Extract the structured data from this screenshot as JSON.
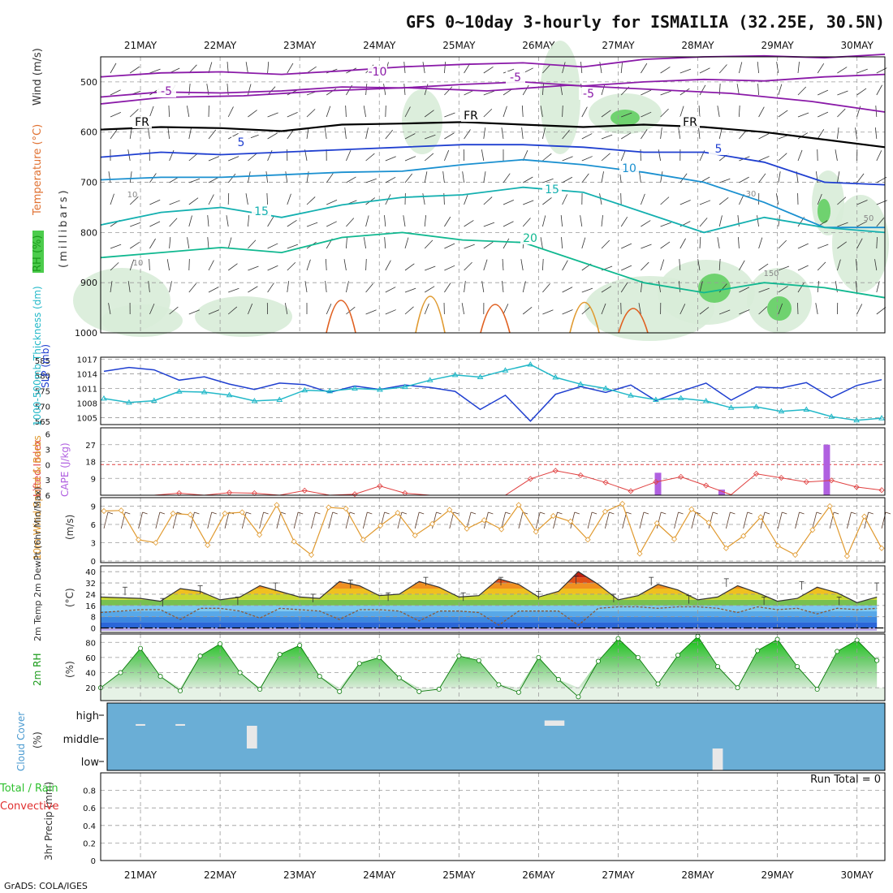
{
  "title": "GFS 0~10day 3-hourly for ISMAILIA (32.25E, 30.5N)",
  "credit": "GrADS: COLA/IGES",
  "dates": [
    "21MAY",
    "22MAY",
    "23MAY",
    "24MAY",
    "25MAY",
    "26MAY",
    "27MAY",
    "28MAY",
    "29MAY",
    "30MAY"
  ],
  "colors": {
    "grid": "#9a9a9a",
    "slp": "#1f3fd0",
    "thickness": "#22b8c8",
    "lifted": "#e04040",
    "cape": "#b060e0",
    "wind": "#e09a30",
    "dewpt": "#8a5a3a",
    "rh": "#2ec02e",
    "cloud": "#6aaed6",
    "precip_total": "#2ec02e",
    "precip_conv": "#e03030"
  },
  "chart_data": [
    {
      "type": "contour",
      "panel": "upper_air",
      "ylabel_rh": "RH (%)",
      "ylabel_temp": "Temperature (°C)",
      "ylabel_wind": "Wind (m/s)",
      "ylabel_units": "(millibars)",
      "yticks": [
        500,
        600,
        700,
        800,
        900,
        1000
      ],
      "contour_labels": [
        "-10",
        "-5",
        "-5",
        "-5",
        "FR",
        "FR",
        "FR",
        "5",
        "5",
        "10",
        "15",
        "15",
        "20",
        "10",
        "10",
        "30",
        "50",
        "150"
      ],
      "isotherms": [
        {
          "name": "-10",
          "pressure": [
            490,
            482,
            480,
            485,
            478,
            470,
            465,
            462,
            470,
            455,
            450,
            448,
            452,
            445
          ]
        },
        {
          "name": "-5",
          "pressure": [
            530,
            520,
            522,
            518,
            510,
            512,
            505,
            500,
            508,
            500,
            495,
            498,
            490,
            485
          ]
        },
        {
          "name": "FR",
          "pressure": [
            595,
            590,
            592,
            598,
            585,
            583,
            580,
            585,
            590,
            585,
            590,
            600,
            615,
            630
          ]
        },
        {
          "name": "5",
          "pressure": [
            650,
            640,
            645,
            640,
            635,
            630,
            625,
            625,
            630,
            640,
            640,
            660,
            700,
            705
          ]
        },
        {
          "name": "10",
          "pressure": [
            695,
            690,
            690,
            685,
            680,
            678,
            665,
            655,
            665,
            680,
            700,
            740,
            790,
            790
          ]
        },
        {
          "name": "15",
          "pressure": [
            785,
            760,
            750,
            770,
            745,
            730,
            725,
            710,
            720,
            760,
            800,
            770,
            790,
            800
          ]
        },
        {
          "name": "20",
          "pressure": [
            850,
            840,
            830,
            840,
            810,
            800,
            815,
            820,
            860,
            900,
            920,
            900,
            910,
            930
          ]
        }
      ]
    },
    {
      "type": "line",
      "panel": "slp_thickness",
      "ylabel_left": "1000-500mb Thickness (dm)",
      "ylabel_right": "SLP (mb)",
      "yticks_left": [
        565,
        570,
        575,
        580,
        585
      ],
      "yticks_right": [
        1005,
        1008,
        1011,
        1014,
        1017
      ],
      "series": [
        {
          "name": "SLP (mb)",
          "axis": "right",
          "values": [
            1014.5,
            1015.3,
            1014.8,
            1012.7,
            1013.4,
            1011.9,
            1010.8,
            1012.1,
            1011.8,
            1010.2,
            1011.5,
            1010.8,
            1011.7,
            1011.2,
            1010.4,
            1006.7,
            1009.6,
            1004.3,
            1009.8,
            1011.4,
            1010.2,
            1011.7,
            1008.5,
            1010.4,
            1012.1,
            1008.6,
            1011.3,
            1011.1,
            1012.2,
            1009.1,
            1011.6,
            1012.8
          ]
        },
        {
          "name": "1000-500mb Thickness (dm)",
          "axis": "left",
          "values": [
            572.5,
            571.2,
            571.8,
            574.8,
            574.6,
            573.6,
            571.7,
            572.1,
            575.2,
            574.9,
            575.8,
            575.4,
            576.3,
            578.5,
            580.2,
            579.5,
            581.7,
            583.6,
            579.4,
            577.2,
            575.8,
            573.5,
            572.1,
            572.6,
            571.7,
            569.5,
            569.8,
            568.3,
            568.9,
            566.6,
            565.4,
            566.1
          ]
        }
      ]
    },
    {
      "type": "bar_line",
      "panel": "lifted_cape",
      "ylabel_left": "Lifted Index",
      "ylabel_right": "CAPE (J/kg)",
      "yticks_left": [
        -6,
        -3,
        0,
        3,
        6
      ],
      "yticks_right": [
        9,
        18,
        27
      ],
      "lifted_index": [
        7.5,
        6.5,
        6.8,
        5.6,
        6.4,
        5.5,
        5.6,
        6.2,
        5.1,
        6.6,
        5.8,
        4.2,
        5.6,
        6.1,
        6.8,
        7.2,
        6.3,
        2.8,
        1.2,
        2.1,
        3.5,
        5.2,
        3.4,
        2.4,
        4.1,
        5.9,
        1.8,
        2.6,
        3.4,
        3.1,
        4.4,
        5.0
      ],
      "cape_bars": [
        {
          "time_day": 27.5,
          "value": 12
        },
        {
          "time_day": 28.3,
          "value": 3
        },
        {
          "time_day": 29.62,
          "value": 27
        }
      ]
    },
    {
      "type": "line",
      "panel": "wind10m",
      "ylabel": "10m Wind Speed & Barbs",
      "yunit": "(m/s)",
      "yticks": [
        0,
        3,
        6,
        9
      ],
      "values": [
        8.2,
        8.3,
        3.5,
        3.0,
        7.8,
        7.6,
        2.6,
        7.8,
        8.0,
        4.3,
        9.2,
        3.2,
        1.0,
        8.8,
        8.6,
        3.5,
        5.8,
        7.9,
        4.2,
        6.1,
        8.4,
        5.3,
        6.7,
        5.2,
        9.2,
        4.8,
        7.4,
        6.5,
        3.5,
        8.1,
        9.4,
        1.2,
        6.2,
        3.6,
        8.5,
        6.3,
        2.1,
        4.1,
        7.2,
        2.5,
        1.0,
        5.1,
        9.0,
        0.8,
        7.3,
        2.1
      ]
    },
    {
      "type": "area",
      "panel": "temp2m",
      "ylabel": "2m Temp 2m DewPt (6hr Min/Max)",
      "yunit": "(°C)",
      "yticks": [
        0,
        8,
        16,
        24,
        32,
        40
      ],
      "x_days": [
        20.5,
        21.0,
        21.25,
        21.5,
        21.75,
        22.0,
        22.25,
        22.5,
        22.75,
        23.0,
        23.25,
        23.5,
        23.75,
        24.0,
        24.25,
        24.5,
        24.75,
        25.0,
        25.25,
        25.5,
        25.75,
        26.0,
        26.25,
        26.5,
        26.75,
        27.0,
        27.25,
        27.5,
        27.75,
        28.0,
        28.25,
        28.5,
        28.75,
        29.0,
        29.25,
        29.5,
        29.75,
        30.0,
        30.25
      ],
      "temperature": [
        22,
        21,
        19,
        28,
        26,
        20,
        22,
        30,
        26,
        22,
        21,
        33,
        30,
        23,
        24,
        33,
        29,
        22,
        23,
        35,
        31,
        22,
        26,
        40,
        31,
        20,
        23,
        31,
        27,
        20,
        22,
        30,
        25,
        19,
        21,
        29,
        25,
        18,
        22
      ],
      "dewpoint": [
        11,
        13,
        13,
        6,
        14,
        14,
        12,
        7,
        14,
        13,
        12,
        6,
        13,
        13,
        12,
        5,
        12,
        12,
        11,
        2,
        12,
        12,
        12,
        2,
        14,
        15,
        15,
        14,
        15,
        15,
        14,
        11,
        15,
        13,
        14,
        10,
        14,
        13,
        14
      ],
      "min_max_marks": [
        29,
        21,
        30,
        22,
        32,
        24,
        34,
        25,
        36,
        25,
        36,
        26,
        37,
        24,
        36,
        23,
        35,
        22,
        33,
        22,
        32
      ]
    },
    {
      "type": "area",
      "panel": "rh2m",
      "ylabel": "2m RH",
      "yunit": "(%)",
      "yticks": [
        20,
        40,
        60,
        80
      ],
      "x_days": [
        20.5,
        20.75,
        21.0,
        21.25,
        21.5,
        21.75,
        22.0,
        22.25,
        22.5,
        22.75,
        23.0,
        23.25,
        23.5,
        23.75,
        24.0,
        24.25,
        24.5,
        24.75,
        25.0,
        25.25,
        25.5,
        25.75,
        26.0,
        26.25,
        26.5,
        26.75,
        27.0,
        27.25,
        27.5,
        27.75,
        28.0,
        28.25,
        28.5,
        28.75,
        29.0,
        29.25,
        29.5,
        29.75,
        30.0,
        30.25
      ],
      "values": [
        20,
        40,
        72,
        35,
        16,
        62,
        78,
        40,
        18,
        64,
        76,
        35,
        15,
        52,
        60,
        33,
        15,
        18,
        62,
        56,
        24,
        14,
        60,
        31,
        8,
        55,
        85,
        60,
        25,
        63,
        88,
        48,
        20,
        69,
        84,
        48,
        18,
        68,
        83,
        56
      ]
    },
    {
      "type": "bar",
      "panel": "cloud",
      "ylabel": "Cloud Cover",
      "yunit": "(%)",
      "levels": [
        "high",
        "middle",
        "low"
      ],
      "clear_patches": [
        {
          "time_day": 21.0,
          "level": "high",
          "width_days": 0.12,
          "value": 8
        },
        {
          "time_day": 21.5,
          "level": "high",
          "width_days": 0.12,
          "value": 8
        },
        {
          "time_day": 22.4,
          "level": "middle",
          "width_days": 0.13,
          "value": 100
        },
        {
          "time_day": 26.2,
          "level": "high",
          "width_days": 0.25,
          "value": 25
        },
        {
          "time_day": 28.25,
          "level": "low",
          "width_days": 0.13,
          "value": 100
        }
      ]
    },
    {
      "type": "bar",
      "panel": "precip",
      "ylabel": "3hr Precip (mm)",
      "legend": [
        "Total / Rain",
        "Convective"
      ],
      "yticks": [
        0,
        0.2,
        0.4,
        0.6,
        0.8
      ],
      "ylim": [
        0,
        1
      ],
      "run_total": "Run Total = 0",
      "values": []
    }
  ]
}
